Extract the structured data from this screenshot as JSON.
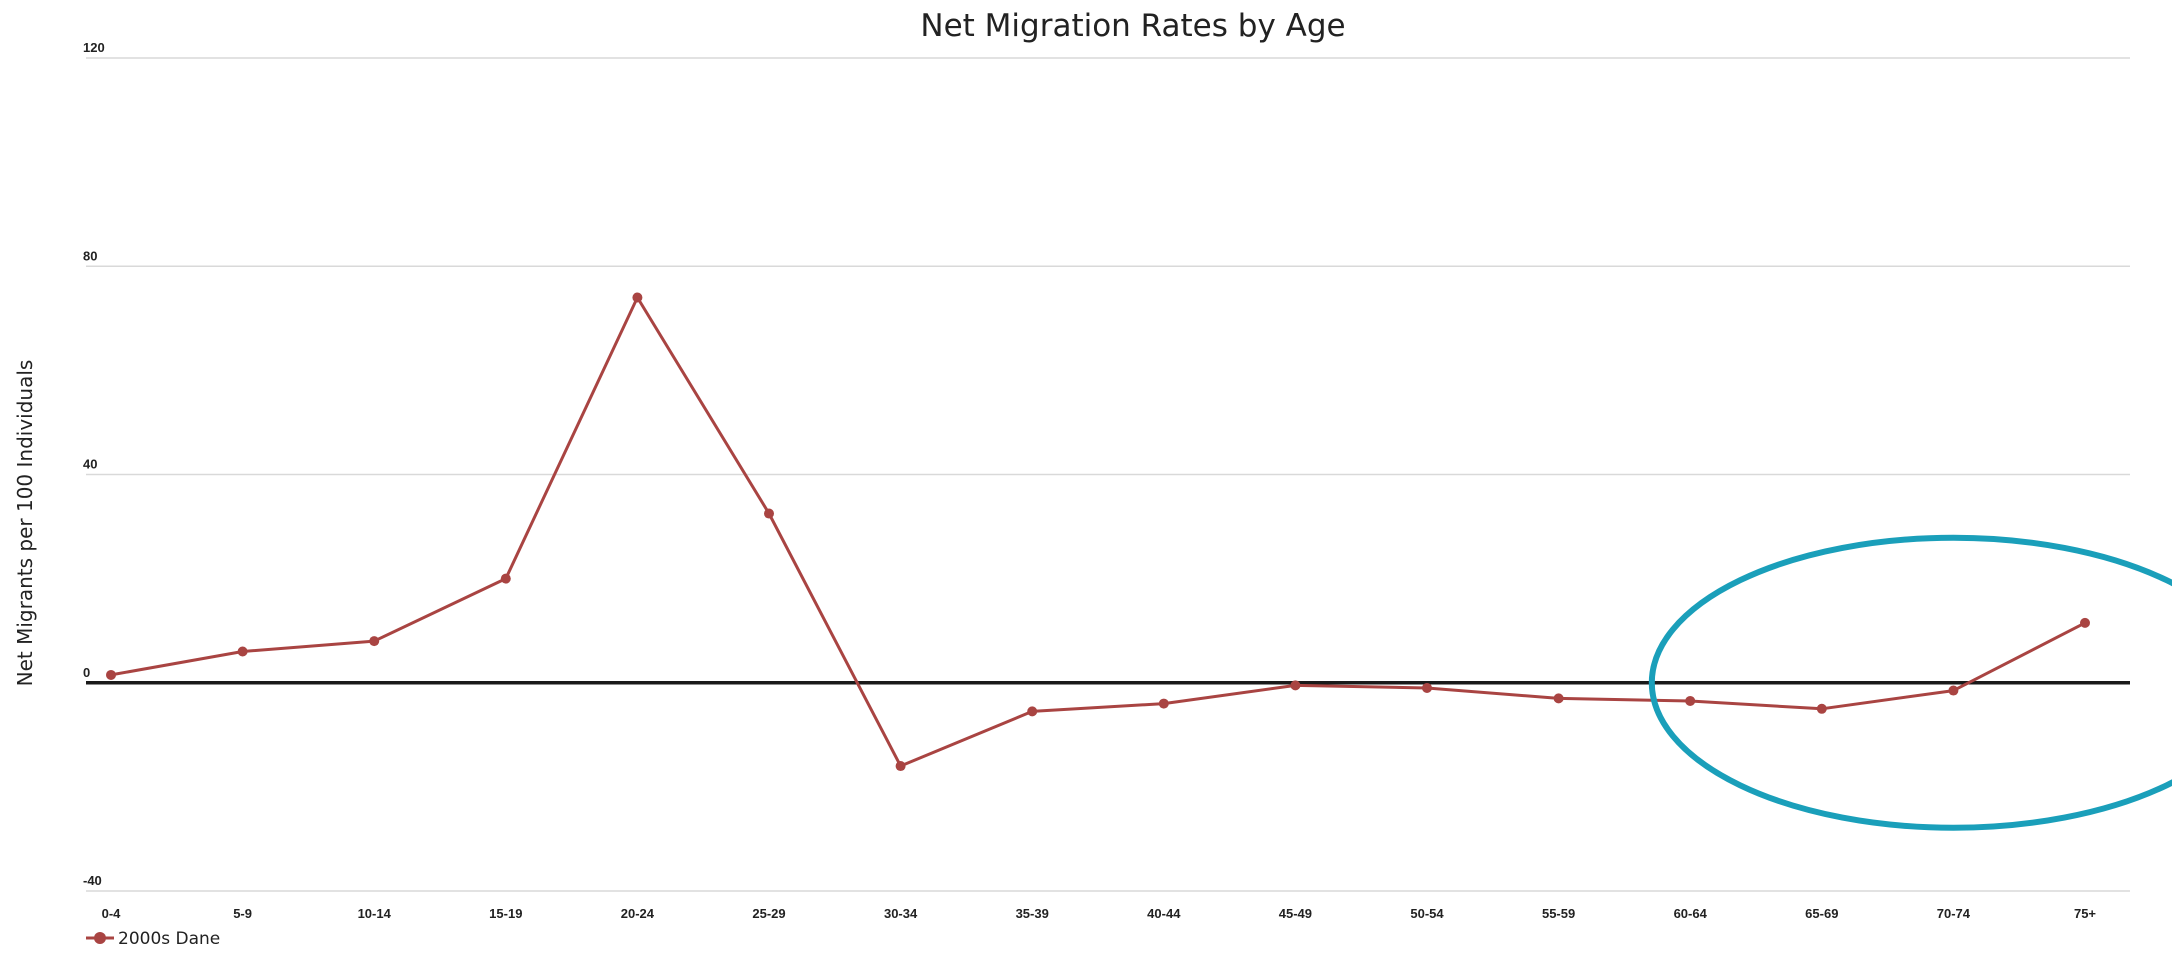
{
  "chart_data": {
    "type": "line",
    "title": "Net Migration Rates by Age",
    "ylabel": "Net Migrants per 100 Individuals",
    "xlabel": "",
    "ylim": [
      -40,
      120
    ],
    "yticks": [
      -40,
      0,
      40,
      80,
      120
    ],
    "grid": true,
    "legend_position": "bottom-left",
    "categories": [
      "0-4",
      "5-9",
      "10-14",
      "15-19",
      "20-24",
      "25-29",
      "30-34",
      "35-39",
      "40-44",
      "45-49",
      "50-54",
      "55-59",
      "60-64",
      "65-69",
      "70-74",
      "75+"
    ],
    "series": [
      {
        "name": "2000s Dane",
        "color": "#a94442",
        "values": [
          1.5,
          6,
          8,
          20,
          74,
          32.5,
          -16,
          -5.5,
          -4,
          -0.5,
          -1,
          -3,
          -3.5,
          -5,
          -1.5,
          11.5
        ]
      }
    ],
    "annotation": {
      "shape": "ellipse",
      "color": "#1a9fba",
      "highlighted_categories": [
        "65-69",
        "70-74",
        "75+"
      ]
    }
  }
}
